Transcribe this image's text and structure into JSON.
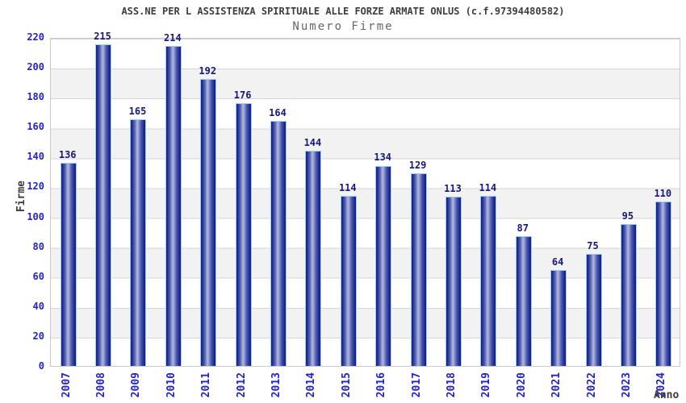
{
  "chart_data": {
    "type": "bar",
    "title": "ASS.NE PER L ASSISTENZA SPIRITUALE ALLE FORZE ARMATE ONLUS (c.f.97394480582)",
    "subtitle": "Numero Firme",
    "xlabel": "Anno",
    "ylabel": "Firme",
    "categories": [
      "2007",
      "2008",
      "2009",
      "2010",
      "2011",
      "2012",
      "2013",
      "2014",
      "2015",
      "2016",
      "2017",
      "2018",
      "2019",
      "2020",
      "2021",
      "2022",
      "2023",
      "2024"
    ],
    "values": [
      136,
      215,
      165,
      214,
      192,
      176,
      164,
      144,
      114,
      134,
      129,
      113,
      114,
      87,
      64,
      75,
      95,
      110
    ],
    "ylim": [
      0,
      220
    ],
    "ytick_step": 20,
    "yticks": [
      0,
      20,
      40,
      60,
      80,
      100,
      120,
      140,
      160,
      180,
      200,
      220
    ],
    "grid": true,
    "legend": false,
    "bands_alternating": true,
    "colors": {
      "bar_dark": "#131c78",
      "bar_light": "#aeb7e0",
      "bar_border": "#99ccff",
      "axis_tick_label": "#2323cb",
      "value_label": "#17177c",
      "band_gray": "#f2f2f2",
      "gridline": "#d6d6d6",
      "plot_border": "#c9c9c9",
      "title_text": "#3d3d3d",
      "subtitle_text": "#666666"
    }
  }
}
